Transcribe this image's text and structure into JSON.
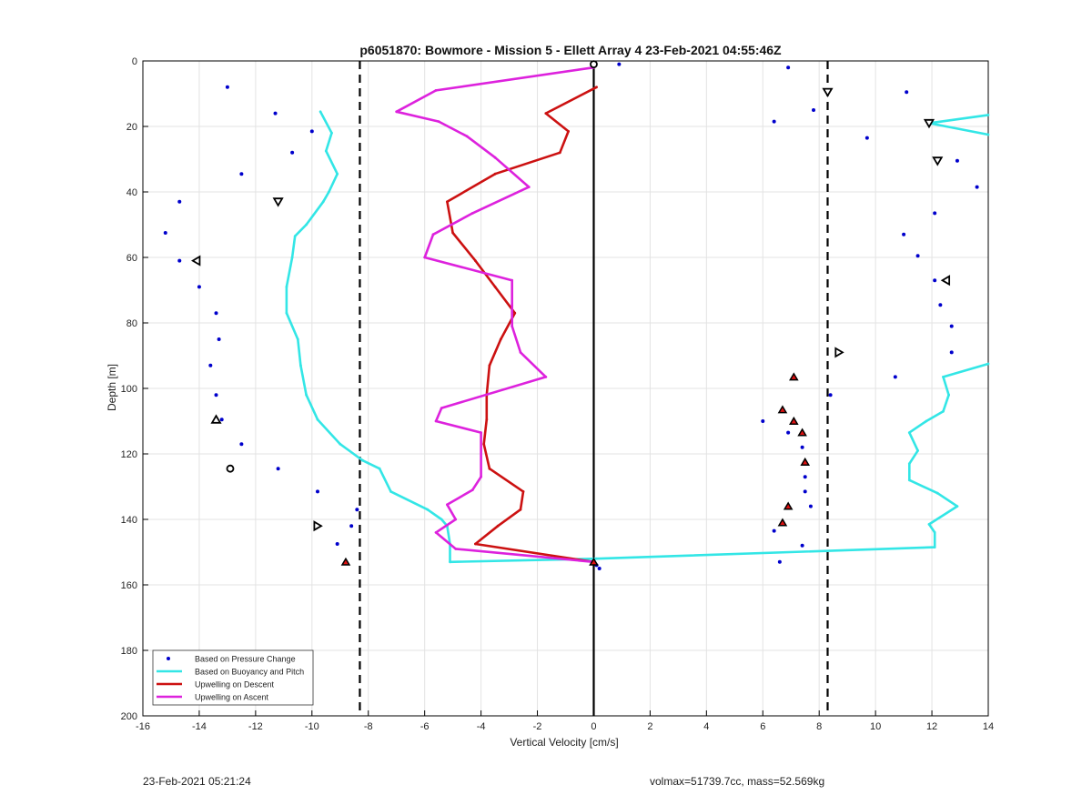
{
  "footer": {
    "left": "23-Feb-2021 05:21:24",
    "right": "volmax=51739.7cc, mass=52.569kg"
  },
  "colors": {
    "pressure": "#0000cc",
    "buoyancy": "#33e6e6",
    "descent": "#cc1111",
    "ascent": "#dd22dd",
    "zero_line": "#000000",
    "dashed": "#000000",
    "grid": "#e3e3e3"
  },
  "chart_data": {
    "type": "scatter",
    "title": "p6051870: Bowmore - Mission 5 - Ellett Array 4 23-Feb-2021 04:55:46Z",
    "xlabel": "Vertical Velocity [cm/s]",
    "ylabel": "Depth [m]",
    "xlim": [
      -16,
      14
    ],
    "ylim": [
      0,
      200
    ],
    "y_reversed": true,
    "grid": true,
    "legend_position": "bottom-left",
    "xticks": [
      -16,
      -14,
      -12,
      -10,
      -8,
      -6,
      -4,
      -2,
      0,
      2,
      4,
      6,
      8,
      10,
      12,
      14
    ],
    "yticks": [
      0,
      20,
      40,
      60,
      80,
      100,
      120,
      140,
      160,
      180,
      200
    ],
    "vlines": [
      {
        "x": 0,
        "style": "solid"
      },
      {
        "x": -8.3,
        "style": "dashed"
      },
      {
        "x": 8.3,
        "style": "dashed"
      }
    ],
    "series": [
      {
        "name": "Based on Pressure Change",
        "kind": "points",
        "points": [
          [
            -13.0,
            8
          ],
          [
            -11.3,
            16
          ],
          [
            -10.0,
            21.5
          ],
          [
            -10.7,
            28
          ],
          [
            -12.5,
            34.5
          ],
          [
            -14.7,
            43
          ],
          [
            -15.2,
            52.5
          ],
          [
            -14.7,
            61
          ],
          [
            -14.0,
            69
          ],
          [
            -13.4,
            77
          ],
          [
            -13.3,
            85
          ],
          [
            -13.6,
            93
          ],
          [
            -13.4,
            102
          ],
          [
            -13.2,
            109.5
          ],
          [
            -12.5,
            117
          ],
          [
            -11.2,
            124.5
          ],
          [
            -9.8,
            131.5
          ],
          [
            -8.4,
            137
          ],
          [
            -8.6,
            142
          ],
          [
            -9.1,
            147.5
          ],
          [
            -8.8,
            153
          ],
          [
            0.1,
            154
          ],
          [
            0.2,
            155
          ],
          [
            0.9,
            1
          ],
          [
            6.9,
            2
          ],
          [
            11.1,
            9.5
          ],
          [
            7.8,
            15
          ],
          [
            6.4,
            18.5
          ],
          [
            9.7,
            23.5
          ],
          [
            12.9,
            30.5
          ],
          [
            13.6,
            38.5
          ],
          [
            12.1,
            46.5
          ],
          [
            11.0,
            53
          ],
          [
            11.5,
            59.5
          ],
          [
            12.1,
            67
          ],
          [
            12.3,
            74.5
          ],
          [
            12.7,
            81
          ],
          [
            12.7,
            89
          ],
          [
            10.7,
            96.5
          ],
          [
            8.4,
            102
          ],
          [
            6.0,
            110
          ],
          [
            6.9,
            113.5
          ],
          [
            7.4,
            118
          ],
          [
            7.5,
            122.5
          ],
          [
            7.5,
            127
          ],
          [
            7.5,
            131.5
          ],
          [
            7.7,
            136
          ],
          [
            6.4,
            143.5
          ],
          [
            7.4,
            148
          ],
          [
            6.6,
            153
          ]
        ]
      },
      {
        "name": "Based on Buoyancy and Pitch",
        "kind": "line",
        "segments": [
          [
            [
              -9.7,
              15.5
            ],
            [
              -9.3,
              22
            ],
            [
              -9.5,
              27.5
            ],
            [
              -9.1,
              34.5
            ],
            [
              -9.4,
              40
            ],
            [
              -9.6,
              43
            ],
            [
              -10.2,
              50
            ],
            [
              -10.6,
              53.5
            ],
            [
              -10.7,
              60
            ],
            [
              -10.9,
              69
            ],
            [
              -10.9,
              77
            ],
            [
              -10.5,
              85
            ],
            [
              -10.4,
              93
            ],
            [
              -10.2,
              102
            ],
            [
              -9.8,
              109.5
            ],
            [
              -9.0,
              117
            ],
            [
              -8.2,
              122
            ],
            [
              -7.6,
              124.5
            ],
            [
              -7.2,
              131.5
            ],
            [
              -5.9,
              137
            ],
            [
              -5.4,
              140
            ],
            [
              -5.2,
              142
            ],
            [
              -5.1,
              147.5
            ],
            [
              -5.1,
              153
            ],
            [
              0.1,
              152
            ],
            [
              12.1,
              148.5
            ],
            [
              12.1,
              144
            ],
            [
              11.9,
              141.5
            ],
            [
              12.9,
              136
            ],
            [
              12.2,
              132
            ],
            [
              11.2,
              128
            ],
            [
              11.2,
              123
            ],
            [
              11.5,
              119
            ],
            [
              11.2,
              113.5
            ],
            [
              11.8,
              110
            ],
            [
              12.4,
              107
            ],
            [
              12.6,
              102
            ],
            [
              12.4,
              96.5
            ],
            [
              14.0,
              92.5
            ]
          ],
          [
            [
              14.0,
              16.5
            ],
            [
              11.9,
              19
            ],
            [
              14.0,
              22.5
            ]
          ]
        ]
      },
      {
        "name": "Upwelling on Descent",
        "kind": "line",
        "points": [
          [
            0.1,
            8
          ],
          [
            -1.7,
            16
          ],
          [
            -0.9,
            21.5
          ],
          [
            -1.2,
            28
          ],
          [
            -3.5,
            34.5
          ],
          [
            -5.2,
            43
          ],
          [
            -5.0,
            52.5
          ],
          [
            -4.2,
            61
          ],
          [
            -3.5,
            69
          ],
          [
            -2.8,
            77
          ],
          [
            -3.3,
            85
          ],
          [
            -3.7,
            93
          ],
          [
            -3.8,
            102
          ],
          [
            -3.8,
            109.5
          ],
          [
            -3.9,
            117
          ],
          [
            -3.7,
            124.5
          ],
          [
            -2.5,
            131.5
          ],
          [
            -2.6,
            137
          ],
          [
            -3.4,
            142
          ],
          [
            -4.2,
            147.5
          ],
          [
            0.0,
            153
          ]
        ]
      },
      {
        "name": "Upwelling on Ascent",
        "kind": "line",
        "points": [
          [
            0.0,
            2
          ],
          [
            -5.6,
            9
          ],
          [
            -7.0,
            15.5
          ],
          [
            -5.5,
            18.5
          ],
          [
            -4.5,
            23
          ],
          [
            -3.5,
            29.5
          ],
          [
            -2.3,
            38.5
          ],
          [
            -4.3,
            46.5
          ],
          [
            -5.7,
            53
          ],
          [
            -6.0,
            60
          ],
          [
            -2.9,
            67
          ],
          [
            -2.9,
            74.5
          ],
          [
            -2.9,
            81
          ],
          [
            -2.6,
            89
          ],
          [
            -1.7,
            96.5
          ],
          [
            -5.4,
            106
          ],
          [
            -5.6,
            110
          ],
          [
            -4.0,
            113.5
          ],
          [
            -4.0,
            127
          ],
          [
            -4.3,
            131
          ],
          [
            -5.2,
            135.5
          ],
          [
            -4.9,
            140
          ],
          [
            -5.6,
            144
          ],
          [
            -4.9,
            149
          ],
          [
            0.0,
            153
          ]
        ]
      }
    ],
    "markers": {
      "open_down": [
        [
          8.3,
          9.5
        ],
        [
          11.9,
          19
        ],
        [
          12.2,
          30.5
        ],
        [
          -11.2,
          43
        ]
      ],
      "open_left": [
        [
          -14.1,
          61
        ],
        [
          12.5,
          67
        ]
      ],
      "open_right": [
        [
          8.7,
          89
        ],
        [
          -9.8,
          142
        ]
      ],
      "open_up": [
        [
          -13.4,
          109.5
        ]
      ],
      "open_round": [
        [
          -12.9,
          124.5
        ],
        [
          0.0,
          1
        ]
      ],
      "filled_up": [
        [
          7.1,
          96.5
        ],
        [
          6.7,
          106.5
        ],
        [
          7.1,
          110
        ],
        [
          7.4,
          113.5
        ],
        [
          7.5,
          122.5
        ],
        [
          6.9,
          136
        ],
        [
          6.7,
          141
        ],
        [
          -8.8,
          153
        ],
        [
          0.0,
          153
        ]
      ]
    }
  }
}
